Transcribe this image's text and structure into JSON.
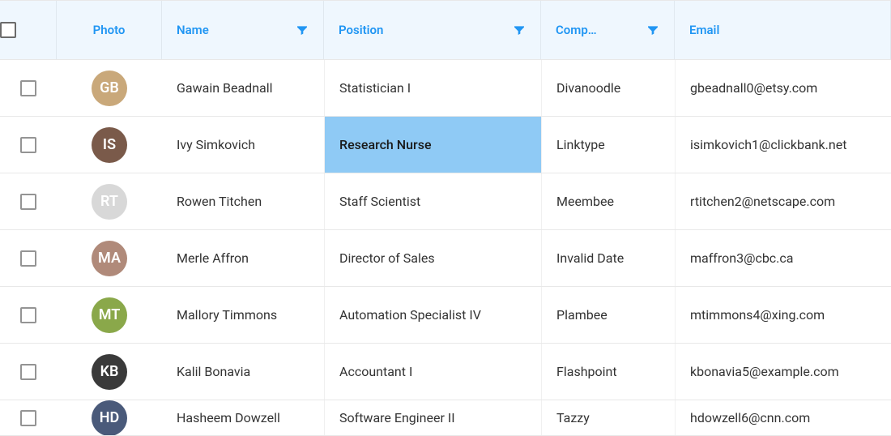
{
  "colors": {
    "header_bg": "#eff7fe",
    "header_text": "#2196f3",
    "body_text": "#333333",
    "border": "#e8e8e8",
    "selected_bg": "#8fcaf5",
    "checkbox_border": "#949494"
  },
  "columns": {
    "photo": {
      "label": "Photo",
      "filterable": false
    },
    "name": {
      "label": "Name",
      "filterable": true
    },
    "position": {
      "label": "Position",
      "filterable": true
    },
    "company": {
      "label": "Comp…",
      "filterable": true
    },
    "email": {
      "label": "Email",
      "filterable": false
    }
  },
  "rows": [
    {
      "checked": false,
      "avatar": {
        "initials": "GB",
        "bg": "#c9a87a"
      },
      "name": "Gawain Beadnall",
      "position": "Statistician I",
      "company": "Divanoodle",
      "email": "gbeadnall0@etsy.com",
      "selected_col": null
    },
    {
      "checked": false,
      "avatar": {
        "initials": "IS",
        "bg": "#7a5a4a"
      },
      "name": "Ivy Simkovich",
      "position": "Research Nurse",
      "company": "Linktype",
      "email": "isimkovich1@clickbank.net",
      "selected_col": "position"
    },
    {
      "checked": false,
      "avatar": {
        "initials": "RT",
        "bg": "#d8d8d8"
      },
      "name": "Rowen Titchen",
      "position": "Staff Scientist",
      "company": "Meembee",
      "email": "rtitchen2@netscape.com",
      "selected_col": null
    },
    {
      "checked": false,
      "avatar": {
        "initials": "MA",
        "bg": "#b08a7a"
      },
      "name": "Merle Affron",
      "position": "Director of Sales",
      "company": "Invalid Date",
      "email": "maffron3@cbc.ca",
      "selected_col": null
    },
    {
      "checked": false,
      "avatar": {
        "initials": "MT",
        "bg": "#8aa84a"
      },
      "name": "Mallory Timmons",
      "position": "Automation Specialist IV",
      "company": "Plambee",
      "email": "mtimmons4@xing.com",
      "selected_col": null
    },
    {
      "checked": false,
      "avatar": {
        "initials": "KB",
        "bg": "#3a3a3a"
      },
      "name": "Kalil Bonavia",
      "position": "Accountant I",
      "company": "Flashpoint",
      "email": "kbonavia5@example.com",
      "selected_col": null
    },
    {
      "checked": false,
      "avatar": {
        "initials": "HD",
        "bg": "#4a5a7a"
      },
      "name": "Hasheem Dowzell",
      "position": "Software Engineer II",
      "company": "Tazzy",
      "email": "hdowzell6@cnn.com",
      "selected_col": null
    }
  ]
}
